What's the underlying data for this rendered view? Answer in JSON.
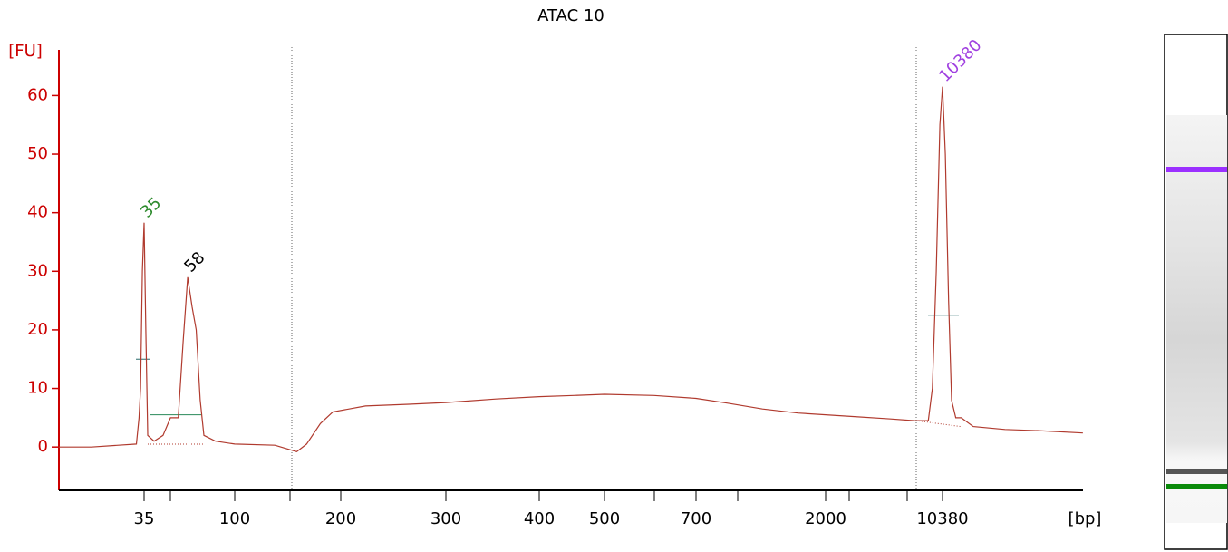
{
  "chart_data": {
    "type": "line",
    "title": "ATAC 10",
    "ylabel": "[FU]",
    "xlabel": "[bp]",
    "ylim": [
      -7.4,
      67.8
    ],
    "yticks": [
      0,
      10,
      20,
      30,
      40,
      50,
      60
    ],
    "xlim": [
      13,
      75000
    ],
    "xticks": [
      35,
      100,
      200,
      300,
      400,
      500,
      700,
      2000,
      10380
    ],
    "x_log_piecewise": true,
    "axis_color": "#cc0000",
    "series": [
      {
        "name": "ATAC 10",
        "color": "#b03a2e",
        "x": [
          13,
          19,
          26,
          32,
          33,
          33.6,
          34.3,
          35,
          35.7,
          36.5,
          39.3,
          43.6,
          47.5,
          52,
          55,
          58,
          61,
          64,
          67,
          70,
          80,
          100,
          130,
          150,
          160,
          175,
          190,
          220,
          260,
          300,
          350,
          400,
          450,
          500,
          600,
          700,
          900,
          1200,
          1600,
          2000,
          3000,
          5000,
          7000,
          8500,
          9000,
          9500,
          10000,
          10380,
          10800,
          11300,
          11800,
          12500,
          13500,
          16000,
          25000,
          40000,
          75000
        ],
        "values": [
          0,
          0,
          0.3,
          0.5,
          5,
          10,
          30,
          38.3,
          20,
          2,
          1,
          2,
          5,
          5,
          18,
          29,
          24,
          20,
          8,
          2,
          1,
          0.5,
          0.3,
          -0.8,
          0.5,
          4,
          6,
          7,
          7.3,
          7.6,
          8.2,
          8.6,
          8.8,
          9,
          8.8,
          8.3,
          7.5,
          6.5,
          5.8,
          5.5,
          5.2,
          4.8,
          4.5,
          4.5,
          10,
          30,
          55,
          61.5,
          50,
          25,
          8,
          5,
          5,
          3.5,
          3,
          2.8,
          2.4
        ]
      }
    ],
    "peaks": [
      {
        "x": 35,
        "y": 38.3,
        "color": "#2e8b2e"
      },
      {
        "x": 58,
        "y": 29,
        "color": "#000000"
      },
      {
        "x": 10380,
        "y": 61.5,
        "color": "#a040e0"
      }
    ]
  }
}
